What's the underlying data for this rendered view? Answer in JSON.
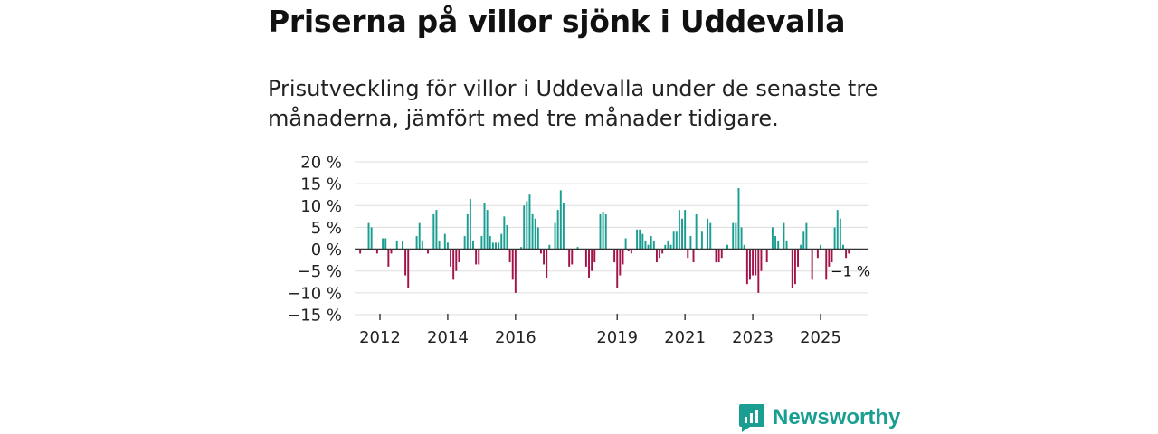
{
  "title": "Priserna på villor sjönk i Uddevalla",
  "subtitle": "Prisutveckling för villor i Uddevalla under de senaste tre månaderna, jämfört med tre månader tidigare.",
  "brand": "Newsworthy",
  "colors": {
    "positive": "#1a9e92",
    "negative": "#a3134a",
    "grid": "#dddddd",
    "baseline": "#333333",
    "brand": "#1a9e92"
  },
  "chart_data": {
    "type": "bar",
    "title": "Priserna på villor sjönk i Uddevalla",
    "xlabel": "",
    "ylabel": "",
    "ylim": [
      -15,
      20
    ],
    "yticks": [
      20,
      15,
      10,
      5,
      0,
      -5,
      -10,
      -15
    ],
    "ytick_labels": [
      "20 %",
      "15 %",
      "10 %",
      "5 %",
      "0 %",
      "−5 %",
      "−10 %",
      "−15 %"
    ],
    "year_ticks": [
      "2012",
      "2014",
      "2016",
      "2019",
      "2021",
      "2023",
      "2025"
    ],
    "x_start": "2011-06",
    "monthly_values": [
      -1,
      0,
      0,
      6,
      5,
      0,
      -1,
      0,
      2.5,
      2.5,
      -4,
      -1,
      0,
      2,
      0,
      2,
      -6,
      -9,
      0,
      0,
      3,
      6,
      2,
      0,
      -1,
      0,
      8,
      9,
      2,
      0,
      3.5,
      1.5,
      -4,
      -7,
      -5,
      -3,
      0,
      3,
      8,
      11.5,
      2,
      -3.5,
      -3.5,
      3,
      10.5,
      9,
      3,
      1.5,
      1.5,
      1.5,
      3.5,
      7.5,
      5.5,
      -3,
      -7,
      -10,
      0,
      0.5,
      10,
      11,
      12.5,
      8,
      7,
      5,
      -1,
      -3.5,
      -6.5,
      1,
      0,
      6,
      9,
      13.5,
      10.5,
      0,
      -4,
      -3.5,
      0,
      0.5,
      0,
      0,
      -4,
      -6.5,
      -5,
      -3,
      0,
      8,
      8.5,
      8,
      0,
      0,
      -3,
      -9,
      -6,
      -3.5,
      2.5,
      -0.5,
      -1,
      0,
      4.5,
      4.5,
      3.5,
      2,
      1,
      3,
      2,
      -3,
      -2,
      -1,
      1,
      2,
      1,
      4,
      4,
      9,
      7,
      9,
      -2,
      3,
      -3,
      8,
      0,
      4,
      0,
      7,
      6,
      0,
      -3,
      -3,
      -2,
      0,
      1,
      0,
      6,
      6,
      14,
      5,
      1,
      -8,
      -7,
      -6,
      -6,
      -10,
      -5,
      0,
      -3,
      0,
      5,
      3,
      2,
      0,
      6,
      2,
      0,
      -9,
      -8,
      -4,
      1,
      4,
      6,
      0,
      -7,
      0,
      -2,
      1,
      0,
      -7,
      -4,
      -3,
      5,
      9,
      7,
      1,
      -2,
      -1
    ],
    "last_value_label": "−1 %"
  }
}
